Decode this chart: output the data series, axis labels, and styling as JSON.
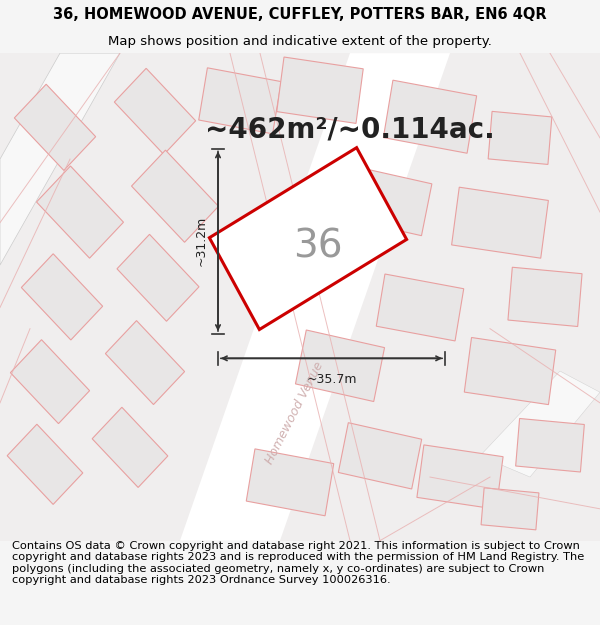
{
  "title_line1": "36, HOMEWOOD AVENUE, CUFFLEY, POTTERS BAR, EN6 4QR",
  "title_line2": "Map shows position and indicative extent of the property.",
  "area_text": "~462m²/~0.114ac.",
  "property_number": "36",
  "dim_width": "~35.7m",
  "dim_height": "~31.2m",
  "street_label": "Homewood Venue",
  "footer_text": "Contains OS data © Crown copyright and database right 2021. This information is subject to Crown copyright and database rights 2023 and is reproduced with the permission of HM Land Registry. The polygons (including the associated geometry, namely x, y co-ordinates) are subject to Crown copyright and database rights 2023 Ordnance Survey 100026316.",
  "bg_color": "#f5f5f5",
  "map_bg": "#f0eeee",
  "road_color": "#ffffff",
  "property_fill": "#ffffff",
  "property_edge": "#cc0000",
  "other_property_fill": "#e8e6e6",
  "other_property_edge": "#e8a0a0",
  "road_edge": "#cccccc",
  "title_fontsize": 10.5,
  "subtitle_fontsize": 9.5,
  "area_fontsize": 20,
  "number_fontsize": 28,
  "footer_fontsize": 8.2,
  "dim_arrow_color": "#333333",
  "dim_text_color": "#222222",
  "street_color": "#ccaaaa"
}
